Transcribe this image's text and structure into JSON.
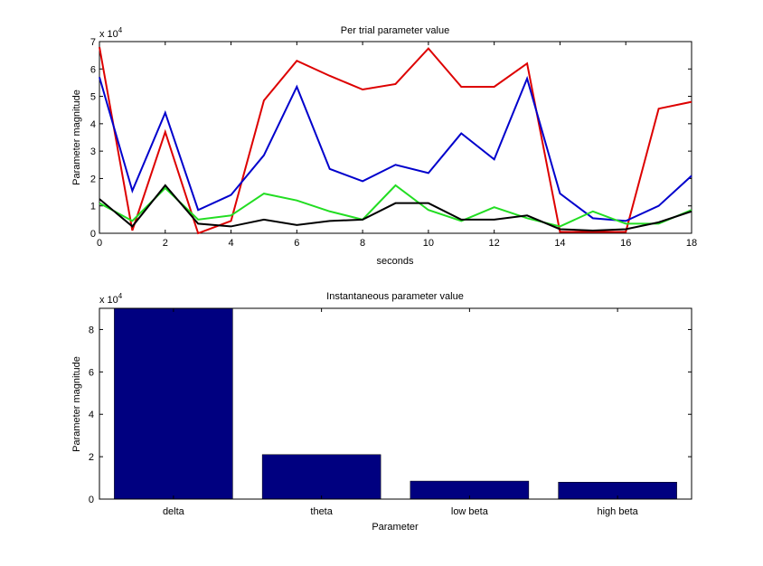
{
  "chart_data": [
    {
      "type": "line",
      "title": "Per trial parameter value",
      "xlabel": "seconds",
      "ylabel": "Parameter magnitude",
      "y_multiplier": "x 10",
      "y_exponent": "4",
      "xlim": [
        0,
        18
      ],
      "ylim": [
        0,
        7
      ],
      "xticks": [
        0,
        2,
        4,
        6,
        8,
        10,
        12,
        14,
        16,
        18
      ],
      "yticks": [
        0,
        1,
        2,
        3,
        4,
        5,
        6,
        7
      ],
      "grid": false,
      "x": [
        0,
        1,
        2,
        3,
        4,
        5,
        6,
        7,
        8,
        9,
        10,
        11,
        12,
        13,
        14,
        15,
        16,
        17,
        18
      ],
      "series": [
        {
          "color": "#dd0000",
          "values": [
            6.8,
            0.1,
            3.7,
            0.0,
            0.45,
            4.85,
            6.3,
            5.75,
            5.25,
            5.45,
            6.75,
            5.35,
            5.35,
            6.2,
            0.05,
            0.05,
            0.05,
            4.55,
            4.8
          ]
        },
        {
          "color": "#0000cc",
          "values": [
            5.7,
            1.55,
            4.4,
            0.85,
            1.4,
            2.85,
            5.35,
            2.35,
            1.9,
            2.5,
            2.2,
            3.65,
            2.7,
            5.65,
            1.45,
            0.55,
            0.45,
            1.0,
            2.1
          ]
        },
        {
          "color": "#22dd22",
          "values": [
            1.1,
            0.45,
            1.65,
            0.5,
            0.65,
            1.45,
            1.2,
            0.8,
            0.5,
            1.75,
            0.85,
            0.45,
            0.95,
            0.55,
            0.25,
            0.8,
            0.35,
            0.35,
            0.85
          ]
        },
        {
          "color": "#000000",
          "values": [
            1.25,
            0.25,
            1.75,
            0.35,
            0.25,
            0.5,
            0.3,
            0.45,
            0.5,
            1.1,
            1.1,
            0.5,
            0.5,
            0.65,
            0.15,
            0.1,
            0.15,
            0.4,
            0.8
          ]
        }
      ]
    },
    {
      "type": "bar",
      "title": "Instantaneous parameter value",
      "xlabel": "Parameter",
      "ylabel": "Parameter magnitude",
      "y_multiplier": "x 10",
      "y_exponent": "4",
      "categories": [
        "delta",
        "theta",
        "low beta",
        "high beta"
      ],
      "values": [
        9.0,
        2.1,
        0.85,
        0.8
      ],
      "ylim": [
        0,
        9
      ],
      "yticks": [
        0,
        2,
        4,
        6,
        8
      ],
      "bar_color": "#000080",
      "grid": false
    }
  ]
}
